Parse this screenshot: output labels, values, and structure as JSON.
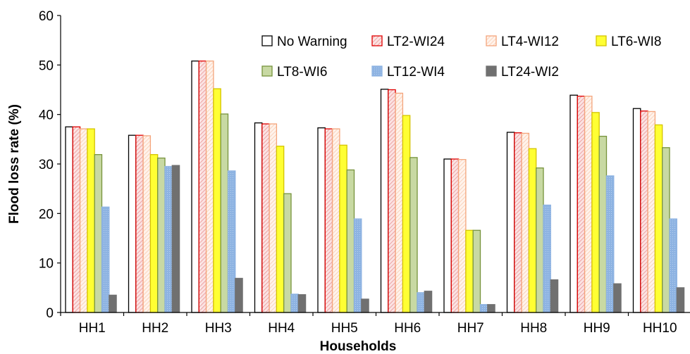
{
  "chart_data": {
    "type": "bar",
    "title": "",
    "xlabel": "Households",
    "ylabel": "Flood loss rate (%)",
    "ylim": [
      0,
      60
    ],
    "yticks": [
      0,
      10,
      20,
      30,
      40,
      50,
      60
    ],
    "grid": false,
    "legend_position": "top-right",
    "categories": [
      "HH1",
      "HH2",
      "HH3",
      "HH4",
      "HH5",
      "HH6",
      "HH7",
      "HH8",
      "HH9",
      "HH10"
    ],
    "series": [
      {
        "name": "No Warning",
        "color": "#ffffff",
        "stroke": "#000000",
        "pattern": "none",
        "values": [
          37.5,
          35.8,
          50.8,
          38.3,
          37.3,
          45.1,
          31.0,
          36.4,
          43.9,
          41.2
        ]
      },
      {
        "name": "LT2-WI24",
        "color": "#f5c6c6",
        "stroke": "#e00000",
        "pattern": "diagonal",
        "values": [
          37.5,
          35.8,
          50.8,
          38.1,
          37.1,
          45.0,
          31.0,
          36.3,
          43.7,
          40.7
        ]
      },
      {
        "name": "LT4-WI12",
        "color": "#fde4d4",
        "stroke": "#f4a57c",
        "pattern": "diagonal",
        "values": [
          37.1,
          35.7,
          50.8,
          38.1,
          37.1,
          44.3,
          30.9,
          36.2,
          43.7,
          40.6
        ]
      },
      {
        "name": "LT6-WI8",
        "color": "#ffff33",
        "stroke": "#d4c400",
        "pattern": "none",
        "values": [
          37.1,
          31.9,
          45.2,
          33.6,
          33.8,
          39.8,
          16.6,
          33.1,
          40.4,
          37.9
        ]
      },
      {
        "name": "LT8-WI6",
        "color": "#c8d9a3",
        "stroke": "#77933c",
        "pattern": "none",
        "values": [
          31.9,
          31.2,
          40.1,
          24.0,
          28.8,
          31.3,
          16.6,
          29.2,
          35.6,
          33.3
        ]
      },
      {
        "name": "LT12-WI4",
        "color": "#8db3e2",
        "stroke": "#8db3e2",
        "pattern": "dots",
        "values": [
          21.3,
          29.5,
          28.6,
          3.7,
          18.9,
          4.0,
          1.6,
          21.7,
          27.6,
          18.9
        ]
      },
      {
        "name": "LT24-WI2",
        "color": "#707070",
        "stroke": "#707070",
        "pattern": "none",
        "values": [
          3.5,
          29.7,
          6.9,
          3.6,
          2.7,
          4.3,
          1.6,
          6.6,
          5.8,
          5.0
        ]
      }
    ]
  }
}
